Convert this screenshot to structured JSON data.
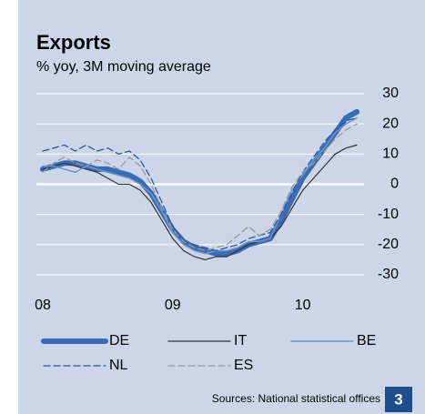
{
  "chart_data": {
    "type": "line",
    "title": "Exports",
    "subtitle": "% yoy, 3M moving average",
    "source": "Sources: National statistical offices",
    "page_number": "3",
    "categories": [
      "08",
      null,
      null,
      null,
      null,
      null,
      null,
      null,
      null,
      null,
      null,
      null,
      "09",
      null,
      null,
      null,
      null,
      null,
      null,
      null,
      null,
      null,
      null,
      null,
      "10",
      null,
      null,
      null,
      null,
      null
    ],
    "ylim": [
      -30,
      30
    ],
    "yticks": [
      30,
      20,
      10,
      0,
      -10,
      -20,
      -30
    ],
    "grid": true,
    "series": [
      {
        "name": "DE",
        "color": "#3a6bb5",
        "values": [
          5,
          6,
          7,
          7,
          6,
          5,
          5,
          4,
          3,
          1,
          -3,
          -9,
          -15,
          -19,
          -21,
          -22,
          -23,
          -23,
          -22,
          -20,
          -19,
          -18,
          -12,
          -5,
          2,
          7,
          12,
          17,
          22,
          24
        ]
      },
      {
        "name": "IT",
        "color": "#333333",
        "values": [
          5,
          6,
          7,
          6,
          5,
          4,
          2,
          0,
          0,
          -2,
          -6,
          -12,
          -18,
          -22,
          -24,
          -25,
          -24,
          -24,
          -22,
          -20,
          -19,
          -18,
          -14,
          -8,
          -2,
          2,
          6,
          10,
          12,
          13
        ]
      },
      {
        "name": "BE",
        "color": "#6f95cc",
        "values": [
          6,
          6,
          5,
          4,
          6,
          5,
          4,
          3,
          2,
          0,
          -3,
          -9,
          -16,
          -20,
          -22,
          -23,
          -22,
          -22,
          -21,
          -19,
          -19,
          -18,
          -10,
          -2,
          3,
          8,
          12,
          17,
          20,
          22
        ]
      },
      {
        "name": "NL",
        "color": "#2a57a8",
        "values": [
          11,
          12,
          13,
          11,
          13,
          11,
          12,
          10,
          11,
          8,
          2,
          -6,
          -14,
          -19,
          -20,
          -21,
          -22,
          -21,
          -20,
          -18,
          -17,
          -16,
          -10,
          -3,
          4,
          9,
          14,
          18,
          21,
          22
        ]
      },
      {
        "name": "ES",
        "color": "#9a9a9a",
        "values": [
          4,
          7,
          9,
          7,
          6,
          8,
          7,
          5,
          9,
          6,
          0,
          -8,
          -15,
          -19,
          -21,
          -22,
          -21,
          -20,
          -17,
          -14,
          -17,
          -15,
          -9,
          -1,
          4,
          7,
          11,
          15,
          18,
          20
        ]
      }
    ]
  }
}
